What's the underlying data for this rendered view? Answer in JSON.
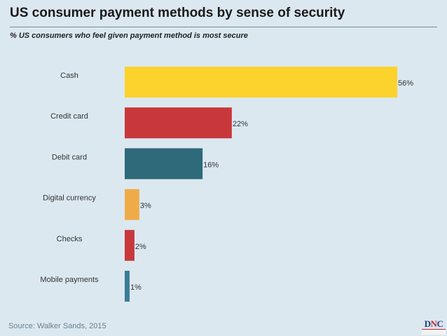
{
  "title": "US consumer payment methods by sense of security",
  "subtitle": "% US consumers who feel given payment method is most secure",
  "source": "Source: Walker Sands, 2015",
  "logo": {
    "text": "DNC",
    "letters": [
      "D",
      "N",
      "C"
    ]
  },
  "chart_data": {
    "type": "bar",
    "orientation": "horizontal",
    "categories": [
      "Cash",
      "Credit card",
      "Debit card",
      "Digital currency",
      "Checks",
      "Mobile payments"
    ],
    "values": [
      56,
      22,
      16,
      3,
      2,
      1
    ],
    "value_labels": [
      "56%",
      "22%",
      "16%",
      "3%",
      "2%",
      "1%"
    ],
    "colors": [
      "#fcd32c",
      "#c8383b",
      "#2e6a7a",
      "#eeab48",
      "#c8383b",
      "#3a7c96"
    ],
    "unit": "%",
    "xlim": [
      0,
      57
    ],
    "grid": false,
    "legend": "none"
  }
}
